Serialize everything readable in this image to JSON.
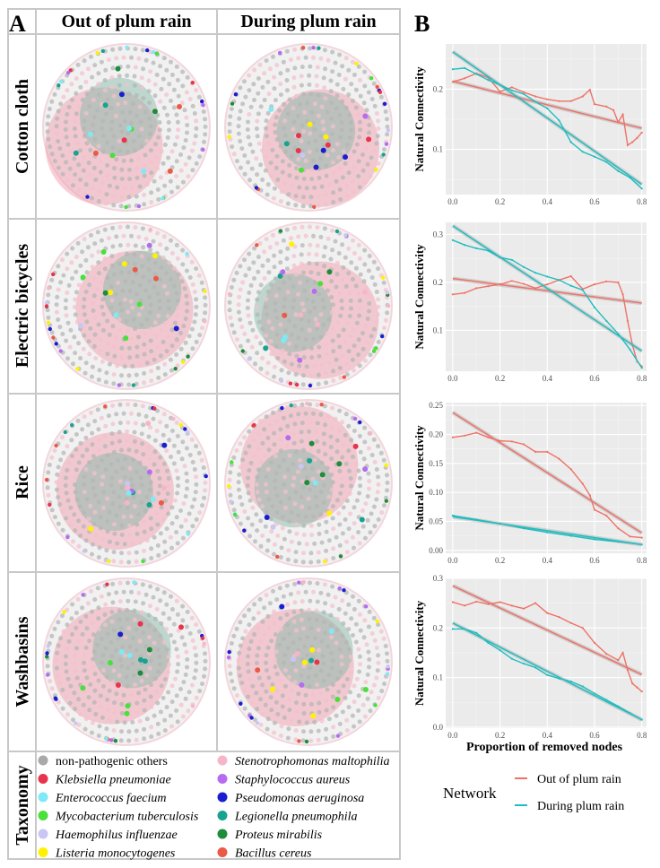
{
  "panel_a": {
    "label": "A",
    "columns": [
      "Out of plum rain",
      "During plum rain"
    ],
    "rows": [
      "Cotton cloth",
      "Electric bicycles",
      "Rice",
      "Washbasins"
    ],
    "taxonomy_label": "Taxonomy",
    "taxonomy": [
      {
        "name": "non-pathogenic others",
        "color": "#a9a9a9",
        "italic": false
      },
      {
        "name": "Klebsiella pneumoniae",
        "color": "#e8344a",
        "italic": true
      },
      {
        "name": "Enterococcus faecium",
        "color": "#7fe9f6",
        "italic": true
      },
      {
        "name": "Mycobacterium tuberculosis",
        "color": "#49e03a",
        "italic": true
      },
      {
        "name": "Haemophilus influenzae",
        "color": "#c9c6f3",
        "italic": true
      },
      {
        "name": "Listeria monocytogenes",
        "color": "#fff200",
        "italic": true
      },
      {
        "name": "Stenotrophomonas maltophilia",
        "color": "#f7b6c8",
        "italic": true
      },
      {
        "name": "Staphylococcus aureus",
        "color": "#b56cf0",
        "italic": true
      },
      {
        "name": "Pseudomonas aeruginosa",
        "color": "#1a1ecf",
        "italic": true
      },
      {
        "name": "Legionella pneumophila",
        "color": "#17a38f",
        "italic": true
      },
      {
        "name": "Proteus mirabilis",
        "color": "#1e8c3a",
        "italic": true
      },
      {
        "name": "Bacillus cereus",
        "color": "#ea5a46",
        "italic": true
      }
    ]
  },
  "panel_b": {
    "label": "B",
    "colors": {
      "out": "#ee7266",
      "during": "#1fbdbf"
    }
  },
  "chart_data": [
    {
      "type": "line",
      "panel": "B1 (Cotton cloth)",
      "xlabel": "",
      "ylabel": "Natural Connectivity",
      "xlim": [
        -0.03,
        0.82
      ],
      "ylim": [
        0.025,
        0.275
      ],
      "xticks": [
        0.0,
        0.2,
        0.4,
        0.6,
        0.8
      ],
      "xtick_labels": [
        "0.0",
        "0.2",
        "0.4",
        "0.6",
        "0.8"
      ],
      "yticks": [
        0.1,
        0.2
      ],
      "ytick_labels": [
        "0.1",
        "0.2"
      ],
      "series": [
        {
          "name": "Out of plum rain",
          "x": [
            0,
            0.05,
            0.1,
            0.15,
            0.2,
            0.25,
            0.3,
            0.35,
            0.4,
            0.45,
            0.5,
            0.55,
            0.58,
            0.6,
            0.65,
            0.68,
            0.7,
            0.72,
            0.74,
            0.76,
            0.78,
            0.8
          ],
          "y": [
            0.212,
            0.218,
            0.226,
            0.219,
            0.196,
            0.203,
            0.195,
            0.188,
            0.183,
            0.18,
            0.18,
            0.188,
            0.199,
            0.175,
            0.171,
            0.165,
            0.145,
            0.158,
            0.107,
            0.112,
            0.119,
            0.128
          ],
          "fit": [
            0.213,
            0.135
          ]
        },
        {
          "name": "During plum rain",
          "x": [
            0,
            0.05,
            0.1,
            0.15,
            0.2,
            0.25,
            0.3,
            0.35,
            0.4,
            0.45,
            0.5,
            0.55,
            0.6,
            0.65,
            0.7,
            0.75,
            0.8
          ],
          "y": [
            0.233,
            0.235,
            0.225,
            0.215,
            0.207,
            0.198,
            0.192,
            0.179,
            0.168,
            0.148,
            0.112,
            0.096,
            0.088,
            0.079,
            0.064,
            0.053,
            0.035
          ],
          "fit": [
            0.262,
            0.042
          ]
        }
      ]
    },
    {
      "type": "line",
      "panel": "B2 (Electric bicycles)",
      "xlabel": "",
      "ylabel": "Natural Connectivity",
      "xlim": [
        -0.03,
        0.82
      ],
      "ylim": [
        0.015,
        0.325
      ],
      "xticks": [
        0.0,
        0.2,
        0.4,
        0.6,
        0.8
      ],
      "xtick_labels": [
        "0.0",
        "0.2",
        "0.4",
        "0.6",
        "0.8"
      ],
      "yticks": [
        0.1,
        0.2,
        0.3
      ],
      "ytick_labels": [
        "0.1",
        "0.2",
        "0.3"
      ],
      "series": [
        {
          "name": "Out of plum rain",
          "x": [
            0,
            0.05,
            0.1,
            0.15,
            0.2,
            0.25,
            0.3,
            0.35,
            0.4,
            0.45,
            0.5,
            0.55,
            0.6,
            0.65,
            0.7,
            0.72,
            0.74,
            0.76,
            0.78,
            0.8
          ],
          "y": [
            0.175,
            0.178,
            0.188,
            0.192,
            0.196,
            0.203,
            0.197,
            0.188,
            0.196,
            0.205,
            0.213,
            0.186,
            0.196,
            0.202,
            0.2,
            0.175,
            0.12,
            0.07,
            0.035,
            0.025
          ],
          "fit": [
            0.208,
            0.157
          ]
        },
        {
          "name": "During plum rain",
          "x": [
            0,
            0.05,
            0.1,
            0.15,
            0.2,
            0.25,
            0.3,
            0.35,
            0.4,
            0.45,
            0.5,
            0.55,
            0.6,
            0.65,
            0.7,
            0.75,
            0.8
          ],
          "y": [
            0.288,
            0.278,
            0.271,
            0.266,
            0.252,
            0.247,
            0.232,
            0.22,
            0.212,
            0.205,
            0.193,
            0.184,
            0.148,
            0.12,
            0.093,
            0.06,
            0.022
          ],
          "fit": [
            0.318,
            0.057
          ]
        }
      ]
    },
    {
      "type": "line",
      "panel": "B3 (Rice)",
      "xlabel": "",
      "ylabel": "Natural Connectivity",
      "xlim": [
        -0.03,
        0.82
      ],
      "ylim": [
        -0.005,
        0.255
      ],
      "xticks": [
        0.0,
        0.2,
        0.4,
        0.6,
        0.8
      ],
      "xtick_labels": [
        "0.0",
        "0.2",
        "0.4",
        "0.6",
        "0.8"
      ],
      "yticks": [
        0.0,
        0.05,
        0.1,
        0.15,
        0.2,
        0.25
      ],
      "ytick_labels": [
        "0.00",
        "0.05",
        "0.10",
        "0.15",
        "0.20",
        "0.25"
      ],
      "series": [
        {
          "name": "Out of plum rain",
          "x": [
            0,
            0.05,
            0.1,
            0.15,
            0.2,
            0.25,
            0.3,
            0.35,
            0.4,
            0.45,
            0.5,
            0.55,
            0.58,
            0.6,
            0.65,
            0.7,
            0.75,
            0.8
          ],
          "y": [
            0.195,
            0.198,
            0.203,
            0.195,
            0.189,
            0.188,
            0.183,
            0.17,
            0.17,
            0.158,
            0.14,
            0.115,
            0.095,
            0.07,
            0.06,
            0.038,
            0.024,
            0.022
          ],
          "fit": [
            0.238,
            0.03
          ]
        },
        {
          "name": "During plum rain",
          "x": [
            0,
            0.1,
            0.2,
            0.3,
            0.4,
            0.5,
            0.6,
            0.7,
            0.8
          ],
          "y": [
            0.06,
            0.053,
            0.046,
            0.038,
            0.031,
            0.025,
            0.019,
            0.015,
            0.01
          ],
          "fit": [
            0.058,
            0.01
          ]
        }
      ]
    },
    {
      "type": "line",
      "panel": "B4 (Washbasins)",
      "xlabel": "Proportion of removed nodes",
      "ylabel": "Natural Connectivity",
      "xlim": [
        -0.03,
        0.82
      ],
      "ylim": [
        -0.002,
        0.3
      ],
      "xticks": [
        0.0,
        0.2,
        0.4,
        0.6,
        0.8
      ],
      "xtick_labels": [
        "0.0",
        "0.2",
        "0.4",
        "0.6",
        "0.8"
      ],
      "yticks": [
        0.0,
        0.1,
        0.2,
        0.3
      ],
      "ytick_labels": [
        "0.0",
        "0.1",
        "0.2",
        "0.3"
      ],
      "series": [
        {
          "name": "Out of plum rain",
          "x": [
            0,
            0.05,
            0.1,
            0.15,
            0.2,
            0.25,
            0.3,
            0.35,
            0.4,
            0.45,
            0.5,
            0.55,
            0.6,
            0.65,
            0.7,
            0.72,
            0.74,
            0.76,
            0.78,
            0.8
          ],
          "y": [
            0.252,
            0.245,
            0.253,
            0.248,
            0.252,
            0.245,
            0.239,
            0.25,
            0.23,
            0.222,
            0.21,
            0.2,
            0.17,
            0.148,
            0.135,
            0.15,
            0.115,
            0.088,
            0.08,
            0.072
          ],
          "fit": [
            0.285,
            0.106
          ]
        },
        {
          "name": "During plum rain",
          "x": [
            0,
            0.05,
            0.1,
            0.15,
            0.2,
            0.25,
            0.3,
            0.35,
            0.4,
            0.45,
            0.5,
            0.55,
            0.6,
            0.65,
            0.7,
            0.75,
            0.8
          ],
          "y": [
            0.198,
            0.198,
            0.19,
            0.17,
            0.155,
            0.138,
            0.128,
            0.12,
            0.105,
            0.098,
            0.092,
            0.082,
            0.068,
            0.055,
            0.042,
            0.028,
            0.015
          ],
          "fit": [
            0.21,
            0.015
          ]
        }
      ]
    }
  ],
  "legend": {
    "title": "Network",
    "items": [
      "Out of plum rain",
      "During plum rain"
    ]
  }
}
